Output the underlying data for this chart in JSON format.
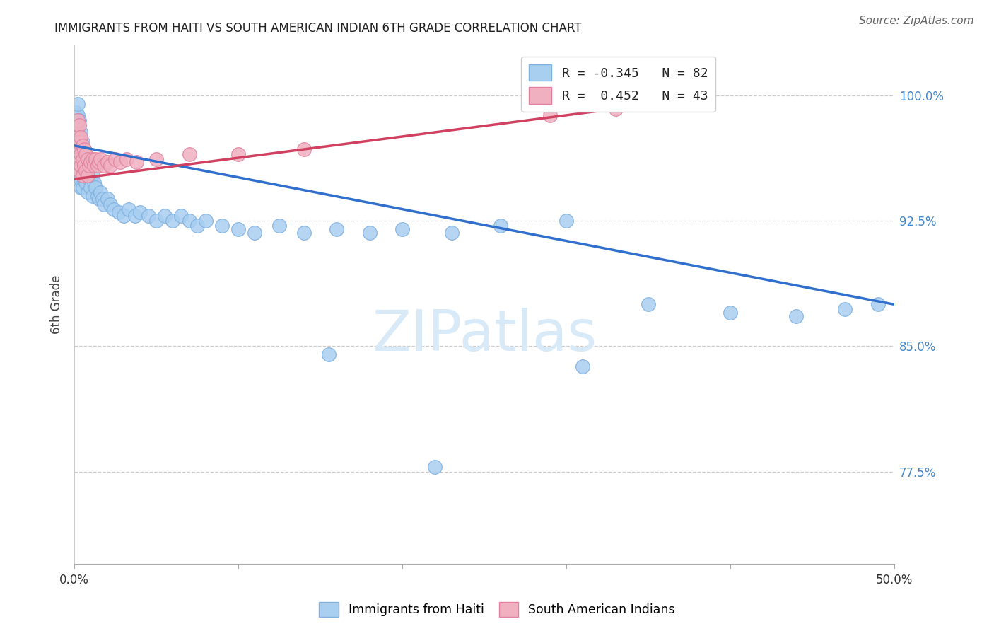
{
  "title": "IMMIGRANTS FROM HAITI VS SOUTH AMERICAN INDIAN 6TH GRADE CORRELATION CHART",
  "source": "Source: ZipAtlas.com",
  "ylabel": "6th Grade",
  "ytick_labels": [
    "100.0%",
    "92.5%",
    "85.0%",
    "77.5%"
  ],
  "ytick_values": [
    1.0,
    0.925,
    0.85,
    0.775
  ],
  "xlim": [
    0.0,
    0.5
  ],
  "ylim": [
    0.72,
    1.03
  ],
  "haiti_color": "#a8cef0",
  "haiti_edge": "#7eb0e0",
  "sa_color": "#f0b0c0",
  "sa_edge": "#e080a0",
  "trend_haiti": "#3070cc",
  "trend_sa": "#d04060",
  "watermark_color": "#d8eaf8",
  "legend_r1": "R = -0.345   N = 82",
  "legend_r2": "R =  0.452   N = 43",
  "haiti_x": [
    0.001,
    0.001,
    0.001,
    0.002,
    0.002,
    0.002,
    0.002,
    0.002,
    0.003,
    0.003,
    0.003,
    0.003,
    0.003,
    0.003,
    0.004,
    0.004,
    0.004,
    0.004,
    0.004,
    0.004,
    0.005,
    0.005,
    0.005,
    0.005,
    0.005,
    0.006,
    0.006,
    0.006,
    0.007,
    0.007,
    0.007,
    0.008,
    0.008,
    0.008,
    0.009,
    0.009,
    0.01,
    0.01,
    0.011,
    0.011,
    0.012,
    0.013,
    0.014,
    0.015,
    0.016,
    0.017,
    0.018,
    0.02,
    0.022,
    0.024,
    0.027,
    0.03,
    0.033,
    0.037,
    0.04,
    0.045,
    0.05,
    0.055,
    0.06,
    0.065,
    0.07,
    0.075,
    0.08,
    0.09,
    0.1,
    0.11,
    0.125,
    0.14,
    0.16,
    0.18,
    0.2,
    0.23,
    0.26,
    0.3,
    0.35,
    0.4,
    0.44,
    0.47,
    0.49,
    0.31,
    0.155,
    0.22
  ],
  "haiti_y": [
    0.99,
    0.985,
    0.975,
    0.988,
    0.978,
    0.968,
    0.995,
    0.972,
    0.985,
    0.975,
    0.968,
    0.96,
    0.958,
    0.952,
    0.978,
    0.97,
    0.963,
    0.958,
    0.95,
    0.945,
    0.972,
    0.965,
    0.958,
    0.952,
    0.945,
    0.968,
    0.958,
    0.95,
    0.965,
    0.955,
    0.948,
    0.962,
    0.952,
    0.942,
    0.96,
    0.95,
    0.958,
    0.945,
    0.952,
    0.94,
    0.948,
    0.945,
    0.94,
    0.938,
    0.942,
    0.938,
    0.935,
    0.938,
    0.935,
    0.932,
    0.93,
    0.928,
    0.932,
    0.928,
    0.93,
    0.928,
    0.925,
    0.928,
    0.925,
    0.928,
    0.925,
    0.922,
    0.925,
    0.922,
    0.92,
    0.918,
    0.922,
    0.918,
    0.92,
    0.918,
    0.92,
    0.918,
    0.922,
    0.925,
    0.875,
    0.87,
    0.868,
    0.872,
    0.875,
    0.838,
    0.845,
    0.778
  ],
  "sa_x": [
    0.001,
    0.001,
    0.001,
    0.002,
    0.002,
    0.002,
    0.003,
    0.003,
    0.003,
    0.003,
    0.004,
    0.004,
    0.004,
    0.005,
    0.005,
    0.005,
    0.006,
    0.006,
    0.007,
    0.007,
    0.008,
    0.008,
    0.009,
    0.01,
    0.011,
    0.012,
    0.013,
    0.014,
    0.015,
    0.016,
    0.018,
    0.02,
    0.022,
    0.025,
    0.028,
    0.032,
    0.038,
    0.05,
    0.07,
    0.1,
    0.14,
    0.29,
    0.33
  ],
  "sa_y": [
    0.98,
    0.968,
    0.958,
    0.985,
    0.975,
    0.962,
    0.982,
    0.972,
    0.962,
    0.955,
    0.975,
    0.965,
    0.958,
    0.97,
    0.962,
    0.952,
    0.968,
    0.958,
    0.965,
    0.955,
    0.962,
    0.952,
    0.958,
    0.96,
    0.962,
    0.958,
    0.962,
    0.958,
    0.96,
    0.962,
    0.958,
    0.96,
    0.958,
    0.962,
    0.96,
    0.962,
    0.96,
    0.962,
    0.965,
    0.965,
    0.968,
    0.988,
    0.992
  ],
  "trend_haiti_x0": 0.0,
  "trend_haiti_y0": 0.97,
  "trend_haiti_x1": 0.5,
  "trend_haiti_y1": 0.875,
  "trend_sa_x0": 0.0,
  "trend_sa_y0": 0.95,
  "trend_sa_x1": 0.33,
  "trend_sa_y1": 0.992
}
